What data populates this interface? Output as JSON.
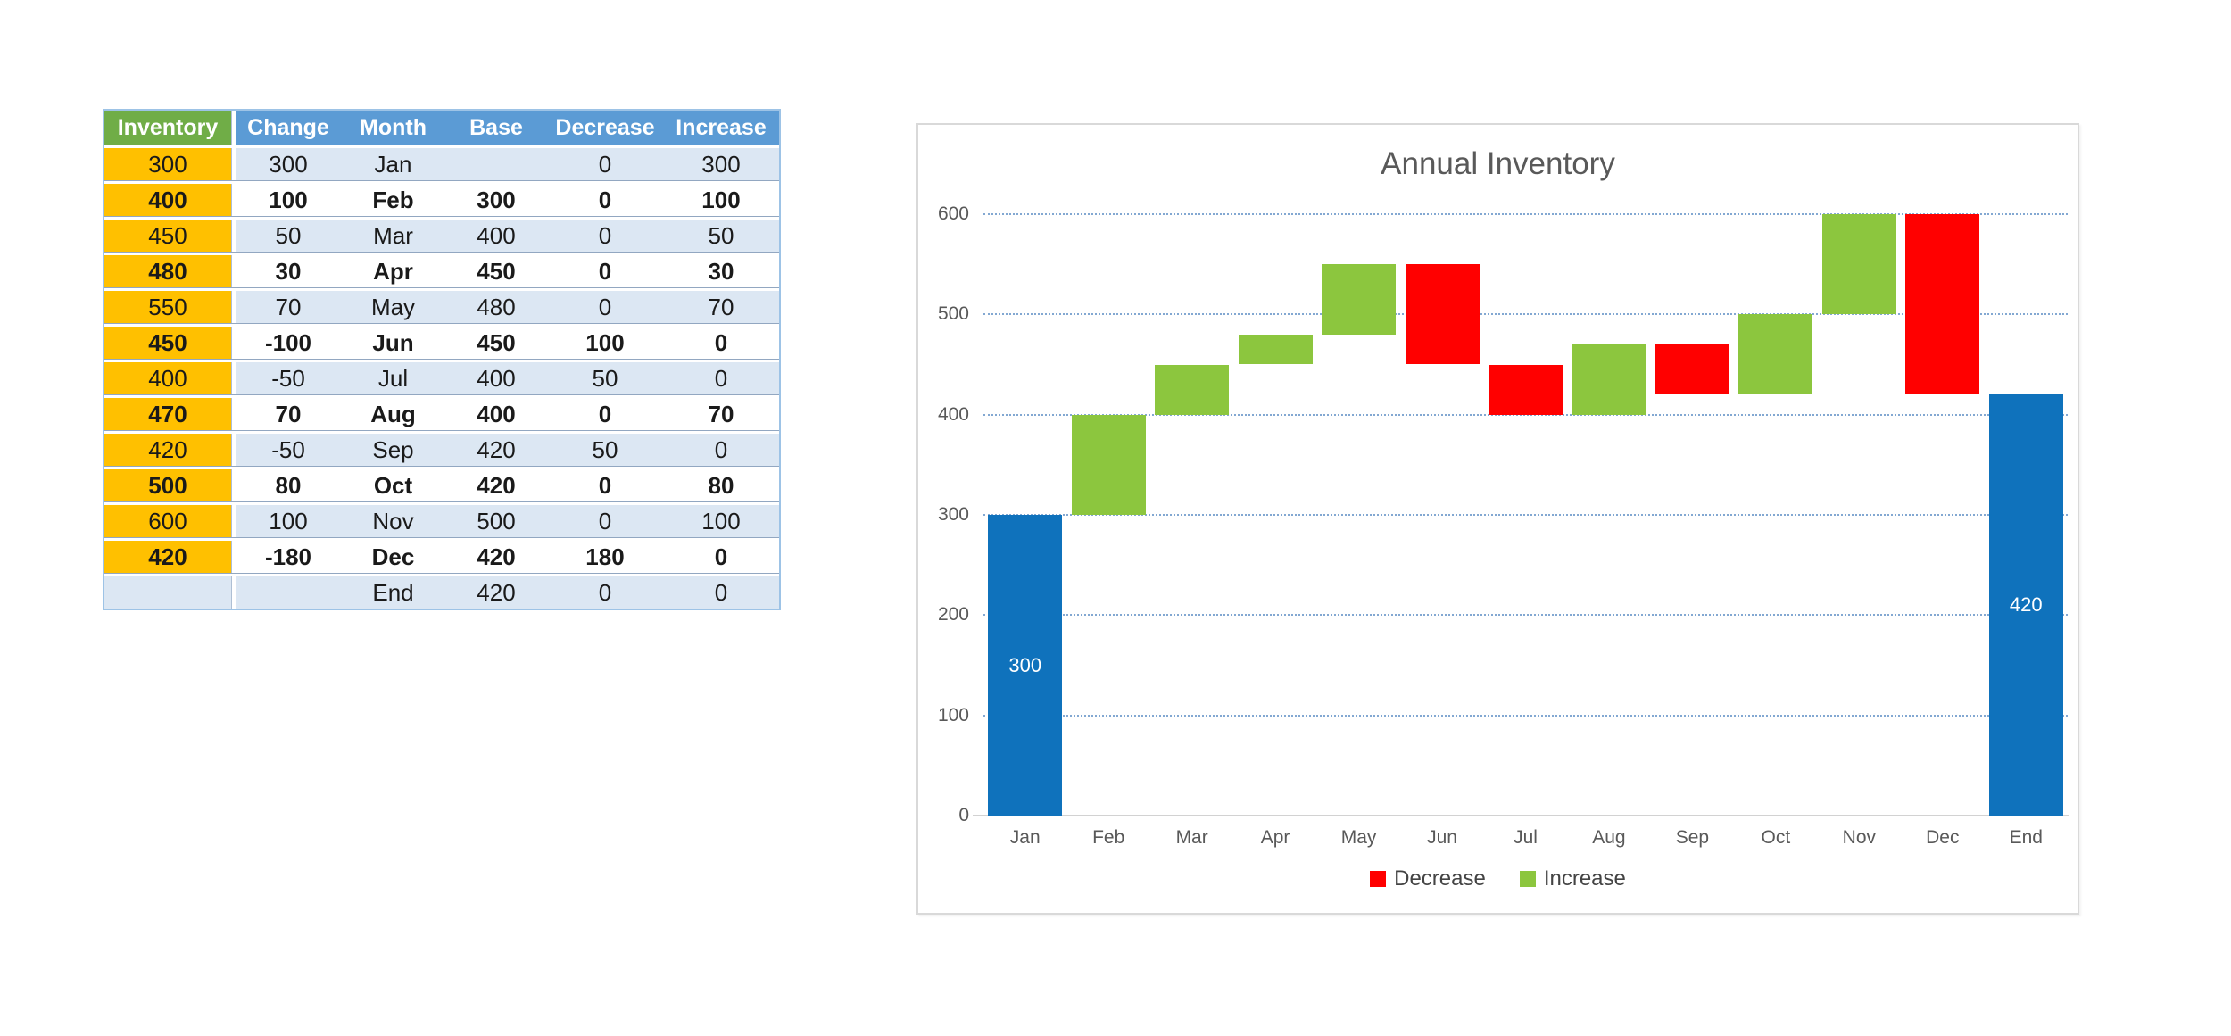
{
  "page": {
    "background": "#ffffff"
  },
  "table": {
    "headers": [
      "Inventory",
      "Change",
      "Month",
      "Base",
      "Decrease",
      "Increase"
    ],
    "rows": [
      [
        "300",
        "300",
        "Jan",
        "",
        "0",
        "300"
      ],
      [
        "400",
        "100",
        "Feb",
        "300",
        "0",
        "100"
      ],
      [
        "450",
        "50",
        "Mar",
        "400",
        "0",
        "50"
      ],
      [
        "480",
        "30",
        "Apr",
        "450",
        "0",
        "30"
      ],
      [
        "550",
        "70",
        "May",
        "480",
        "0",
        "70"
      ],
      [
        "450",
        "-100",
        "Jun",
        "450",
        "100",
        "0"
      ],
      [
        "400",
        "-50",
        "Jul",
        "400",
        "50",
        "0"
      ],
      [
        "470",
        "70",
        "Aug",
        "400",
        "0",
        "70"
      ],
      [
        "420",
        "-50",
        "Sep",
        "420",
        "50",
        "0"
      ],
      [
        "500",
        "80",
        "Oct",
        "420",
        "0",
        "80"
      ],
      [
        "600",
        "100",
        "Nov",
        "500",
        "0",
        "100"
      ],
      [
        "420",
        "-180",
        "Dec",
        "420",
        "180",
        "0"
      ],
      [
        "",
        "",
        "End",
        "420",
        "0",
        "0"
      ]
    ],
    "colors": {
      "header_inventory_bg": "#70AD47",
      "header_bg": "#5B9BD5",
      "header_text": "#FFFFFF",
      "inventory_column_bg": "#FFC000",
      "banded_row_bg": "#DCE7F3",
      "plain_row_bg": "#FFFFFF",
      "outline": "#9DC3E6"
    }
  },
  "chart": {
    "title": "Annual Inventory",
    "legend": [
      {
        "label": "Decrease",
        "color": "#FF0000"
      },
      {
        "label": "Increase",
        "color": "#8CC63E"
      }
    ]
  },
  "chart_data": {
    "type": "bar",
    "subtype": "waterfall",
    "title": "Annual Inventory",
    "categories": [
      "Jan",
      "Feb",
      "Mar",
      "Apr",
      "May",
      "Jun",
      "Jul",
      "Aug",
      "Sep",
      "Oct",
      "Nov",
      "Dec",
      "End"
    ],
    "ylim": [
      0,
      600
    ],
    "y_ticks": [
      0,
      100,
      200,
      300,
      400,
      500,
      600
    ],
    "grid": "dotted-horizontal",
    "legend_position": "bottom",
    "xlabel": "",
    "ylabel": "",
    "role_colors": {
      "total": "#0F72BC",
      "increase": "#8CC63E",
      "decrease": "#FF0000"
    },
    "bars": [
      {
        "category": "Jan",
        "from": 0,
        "to": 300,
        "role": "total",
        "label": "300"
      },
      {
        "category": "Feb",
        "from": 300,
        "to": 400,
        "role": "increase",
        "label": ""
      },
      {
        "category": "Mar",
        "from": 400,
        "to": 450,
        "role": "increase",
        "label": ""
      },
      {
        "category": "Apr",
        "from": 450,
        "to": 480,
        "role": "increase",
        "label": ""
      },
      {
        "category": "May",
        "from": 480,
        "to": 550,
        "role": "increase",
        "label": ""
      },
      {
        "category": "Jun",
        "from": 450,
        "to": 550,
        "role": "decrease",
        "label": ""
      },
      {
        "category": "Jul",
        "from": 400,
        "to": 450,
        "role": "decrease",
        "label": ""
      },
      {
        "category": "Aug",
        "from": 400,
        "to": 470,
        "role": "increase",
        "label": ""
      },
      {
        "category": "Sep",
        "from": 420,
        "to": 470,
        "role": "decrease",
        "label": ""
      },
      {
        "category": "Oct",
        "from": 420,
        "to": 500,
        "role": "increase",
        "label": ""
      },
      {
        "category": "Nov",
        "from": 500,
        "to": 600,
        "role": "increase",
        "label": ""
      },
      {
        "category": "Dec",
        "from": 420,
        "to": 600,
        "role": "decrease",
        "label": ""
      },
      {
        "category": "End",
        "from": 0,
        "to": 420,
        "role": "total",
        "label": "420"
      }
    ],
    "series": [
      {
        "name": "Base",
        "values": [
          null,
          300,
          400,
          450,
          480,
          450,
          400,
          400,
          420,
          420,
          500,
          420,
          420
        ]
      },
      {
        "name": "Decrease",
        "values": [
          0,
          0,
          0,
          0,
          0,
          100,
          50,
          0,
          50,
          0,
          0,
          180,
          0
        ]
      },
      {
        "name": "Increase",
        "values": [
          300,
          100,
          50,
          30,
          70,
          0,
          0,
          70,
          0,
          80,
          100,
          0,
          0
        ]
      }
    ]
  }
}
